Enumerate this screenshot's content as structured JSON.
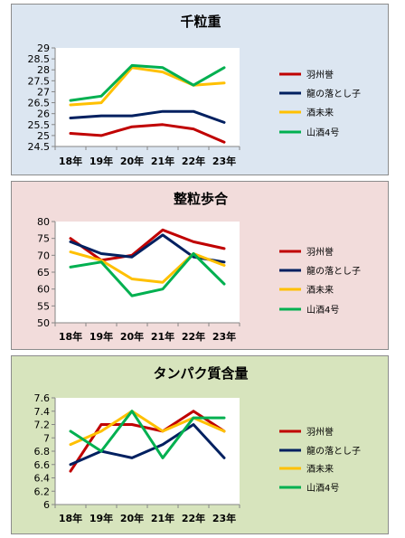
{
  "chart_data": [
    {
      "type": "line",
      "title": "千粒重",
      "categories": [
        "18年",
        "19年",
        "20年",
        "21年",
        "22年",
        "23年"
      ],
      "yticks": [
        "24.5",
        "25",
        "25.5",
        "26",
        "26.5",
        "27",
        "27.5",
        "28",
        "28.5",
        "29"
      ],
      "ylim": [
        24.5,
        29
      ],
      "grid": false,
      "legend_position": "right",
      "series": [
        {
          "name": "羽州誉",
          "color": "#c00000",
          "values": [
            25.1,
            25.0,
            25.4,
            25.5,
            25.3,
            24.7
          ]
        },
        {
          "name": "龍の落とし子",
          "color": "#002060",
          "values": [
            25.8,
            25.9,
            25.9,
            26.1,
            26.1,
            25.6
          ]
        },
        {
          "name": "酒未来",
          "color": "#ffc000",
          "values": [
            26.4,
            26.5,
            28.1,
            27.9,
            27.3,
            27.4
          ]
        },
        {
          "name": "山酒4号",
          "color": "#00b050",
          "values": [
            26.6,
            26.8,
            28.2,
            28.1,
            27.3,
            28.1
          ]
        }
      ]
    },
    {
      "type": "line",
      "title": "整粒歩合",
      "categories": [
        "18年",
        "19年",
        "20年",
        "21年",
        "22年",
        "23年"
      ],
      "yticks": [
        "50",
        "55",
        "60",
        "65",
        "70",
        "75",
        "80"
      ],
      "ylim": [
        50,
        80
      ],
      "grid": false,
      "legend_position": "right",
      "series": [
        {
          "name": "羽州誉",
          "color": "#c00000",
          "values": [
            75.0,
            68.5,
            70.0,
            77.5,
            74.0,
            72.0
          ]
        },
        {
          "name": "龍の落とし子",
          "color": "#002060",
          "values": [
            74.0,
            70.5,
            69.5,
            76.0,
            69.5,
            68.0
          ]
        },
        {
          "name": "酒未来",
          "color": "#ffc000",
          "values": [
            71.0,
            68.5,
            63.0,
            62.0,
            70.5,
            67.0
          ]
        },
        {
          "name": "山酒4号",
          "color": "#00b050",
          "values": [
            66.5,
            68.0,
            58.0,
            60.0,
            70.5,
            61.5
          ]
        }
      ]
    },
    {
      "type": "line",
      "title": "タンパク質含量",
      "categories": [
        "18年",
        "19年",
        "20年",
        "21年",
        "22年",
        "23年"
      ],
      "yticks": [
        "6",
        "6.2",
        "6.4",
        "6.6",
        "6.8",
        "7",
        "7.2",
        "7.4",
        "7.6"
      ],
      "ylim": [
        6,
        7.6
      ],
      "grid": false,
      "legend_position": "right",
      "series": [
        {
          "name": "羽州誉",
          "color": "#c00000",
          "values": [
            6.5,
            7.2,
            7.2,
            7.1,
            7.4,
            7.1
          ]
        },
        {
          "name": "龍の落とし子",
          "color": "#002060",
          "values": [
            6.6,
            6.8,
            6.7,
            6.9,
            7.2,
            6.7
          ]
        },
        {
          "name": "酒未来",
          "color": "#ffc000",
          "values": [
            6.9,
            7.1,
            7.4,
            7.1,
            7.3,
            7.1
          ]
        },
        {
          "name": "山酒4号",
          "color": "#00b050",
          "values": [
            7.1,
            6.8,
            7.4,
            6.7,
            7.3,
            7.3
          ]
        }
      ]
    }
  ]
}
